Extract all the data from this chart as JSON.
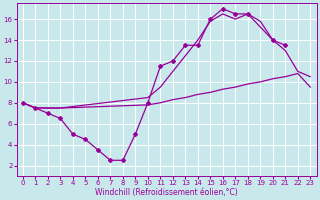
{
  "xlabel": "Windchill (Refroidissement éolien,°C)",
  "background_color": "#c8e8ec",
  "grid_color": "#ffffff",
  "line_color": "#990099",
  "xlim": [
    -0.5,
    23.5
  ],
  "ylim": [
    1.0,
    17.5
  ],
  "xticks": [
    0,
    1,
    2,
    3,
    4,
    5,
    6,
    7,
    8,
    9,
    10,
    11,
    12,
    13,
    14,
    15,
    16,
    17,
    18,
    19,
    20,
    21,
    22,
    23
  ],
  "yticks": [
    2,
    4,
    6,
    8,
    10,
    12,
    14,
    16
  ],
  "series": [
    {
      "comment": "straight-ish line from 8 to ~9.5, nearly flat then slowly rising",
      "x": [
        0,
        1,
        2,
        3,
        10,
        11,
        12,
        13,
        14,
        15,
        16,
        17,
        18,
        19,
        20,
        21,
        22,
        23
      ],
      "y": [
        8,
        7.5,
        7.5,
        7.5,
        7.8,
        8.0,
        8.3,
        8.5,
        8.8,
        9.0,
        9.3,
        9.5,
        9.8,
        10.0,
        10.3,
        10.5,
        10.8,
        9.5
      ],
      "marker": false
    },
    {
      "comment": "upper line with no markers - rising from 8 to ~16 then dropping",
      "x": [
        0,
        1,
        2,
        3,
        10,
        11,
        12,
        13,
        14,
        15,
        16,
        17,
        18,
        19,
        20,
        21,
        22,
        23
      ],
      "y": [
        8,
        7.5,
        7.5,
        7.5,
        8.5,
        9.5,
        11.0,
        12.5,
        14.0,
        15.8,
        16.5,
        16.0,
        16.5,
        15.8,
        14.0,
        13.0,
        11.0,
        10.5
      ],
      "marker": false
    },
    {
      "comment": "line with diamond markers - dips low then rises high",
      "x": [
        0,
        1,
        2,
        3,
        4,
        5,
        6,
        7,
        8,
        9,
        10,
        11,
        12,
        13,
        14,
        15,
        16,
        17,
        18,
        20,
        21
      ],
      "y": [
        8,
        7.5,
        7.0,
        6.5,
        5.0,
        4.5,
        3.5,
        2.5,
        2.5,
        5.0,
        8.0,
        11.5,
        12.0,
        13.5,
        13.5,
        16.0,
        17.0,
        16.5,
        16.5,
        14.0,
        13.5
      ],
      "marker": true
    }
  ]
}
